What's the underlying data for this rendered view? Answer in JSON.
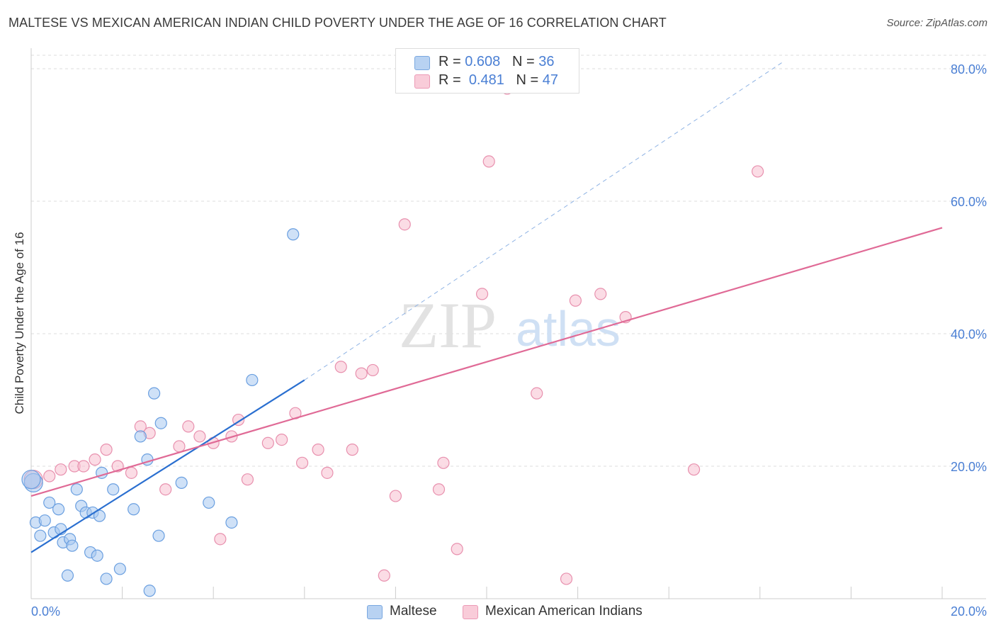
{
  "header": {
    "title": "MALTESE VS MEXICAN AMERICAN INDIAN CHILD POVERTY UNDER THE AGE OF 16 CORRELATION CHART",
    "source": "Source: ZipAtlas.com"
  },
  "legend": {
    "rows": [
      {
        "r_label": "R = ",
        "r_value": "0.608",
        "n_label": "N = ",
        "n_value": "36"
      },
      {
        "r_label": "R = ",
        "r_value": "0.481",
        "n_label": "N = ",
        "n_value": "47"
      }
    ]
  },
  "bottom_legend": [
    "Maltese",
    "Mexican American Indians"
  ],
  "watermark": {
    "zip": "ZIP",
    "atlas": "atlas"
  },
  "colors": {
    "maltese_fill": "#a8c8f0",
    "maltese_stroke": "#6a9fe0",
    "maltese_line": "#2a6fd0",
    "mexican_fill": "#f7bfd0",
    "mexican_stroke": "#e890ae",
    "mexican_line": "#e06a96",
    "tick_text": "#4a7fd4",
    "grid": "#dddddd"
  },
  "chart_data": {
    "type": "scatter",
    "title": "MALTESE VS MEXICAN AMERICAN INDIAN CHILD POVERTY UNDER THE AGE OF 16 CORRELATION CHART",
    "xlabel": "",
    "ylabel": "Child Poverty Under the Age of 16",
    "xlim": [
      0,
      20
    ],
    "ylim": [
      0,
      80
    ],
    "x_ticks": [
      {
        "value": 0,
        "label": "0.0%"
      },
      {
        "value": 20,
        "label": "20.0%"
      }
    ],
    "y_ticks": [
      {
        "value": 20,
        "label": "20.0%"
      },
      {
        "value": 40,
        "label": "40.0%"
      },
      {
        "value": 60,
        "label": "60.0%"
      },
      {
        "value": 80,
        "label": "80.0%"
      }
    ],
    "grid": true,
    "legend_position": "top-center",
    "series": [
      {
        "name": "Maltese",
        "points": [
          [
            0.05,
            17.5
          ],
          [
            0.1,
            11.5
          ],
          [
            0.2,
            9.5
          ],
          [
            0.3,
            11.8
          ],
          [
            0.4,
            14.5
          ],
          [
            0.5,
            10
          ],
          [
            0.6,
            13.5
          ],
          [
            0.65,
            10.5
          ],
          [
            0.7,
            8.5
          ],
          [
            0.8,
            3.5
          ],
          [
            0.85,
            9
          ],
          [
            0.9,
            8
          ],
          [
            1.0,
            16.5
          ],
          [
            1.1,
            14
          ],
          [
            1.2,
            13
          ],
          [
            1.3,
            7
          ],
          [
            1.35,
            13
          ],
          [
            1.45,
            6.5
          ],
          [
            1.5,
            12.5
          ],
          [
            1.55,
            19
          ],
          [
            1.65,
            3
          ],
          [
            1.8,
            16.5
          ],
          [
            1.95,
            4.5
          ],
          [
            2.25,
            13.5
          ],
          [
            2.4,
            24.5
          ],
          [
            2.55,
            21
          ],
          [
            2.6,
            1.2
          ],
          [
            2.7,
            31
          ],
          [
            2.8,
            9.5
          ],
          [
            2.85,
            26.5
          ],
          [
            3.3,
            17.5
          ],
          [
            3.9,
            14.5
          ],
          [
            4.4,
            11.5
          ],
          [
            4.85,
            33
          ],
          [
            5.75,
            55
          ],
          [
            0.0,
            18.0
          ]
        ],
        "trend": {
          "x": [
            0,
            6
          ],
          "y": [
            7,
            33
          ],
          "extends_dashed_to": [
            16.5,
            81
          ]
        }
      },
      {
        "name": "Mexican American Indians",
        "points": [
          [
            0.05,
            18
          ],
          [
            0.4,
            18.5
          ],
          [
            0.65,
            19.5
          ],
          [
            0.95,
            20
          ],
          [
            1.15,
            20
          ],
          [
            1.4,
            21
          ],
          [
            1.65,
            22.5
          ],
          [
            1.9,
            20
          ],
          [
            2.2,
            19
          ],
          [
            2.4,
            26
          ],
          [
            2.6,
            25
          ],
          [
            2.95,
            16.5
          ],
          [
            3.25,
            23
          ],
          [
            3.45,
            26
          ],
          [
            3.7,
            24.5
          ],
          [
            4.0,
            23.5
          ],
          [
            4.15,
            9
          ],
          [
            4.4,
            24.5
          ],
          [
            4.55,
            27
          ],
          [
            4.75,
            18
          ],
          [
            5.2,
            23.5
          ],
          [
            5.5,
            24
          ],
          [
            5.8,
            28
          ],
          [
            5.95,
            20.5
          ],
          [
            6.3,
            22.5
          ],
          [
            6.5,
            19
          ],
          [
            6.8,
            35
          ],
          [
            7.05,
            22.5
          ],
          [
            7.25,
            34
          ],
          [
            7.5,
            34.5
          ],
          [
            7.75,
            3.5
          ],
          [
            8.0,
            15.5
          ],
          [
            8.2,
            56.5
          ],
          [
            8.95,
            16.5
          ],
          [
            9.05,
            20.5
          ],
          [
            9.35,
            7.5
          ],
          [
            9.9,
            46
          ],
          [
            10.05,
            66
          ],
          [
            10.45,
            77
          ],
          [
            11.1,
            31
          ],
          [
            11.75,
            3
          ],
          [
            11.95,
            45
          ],
          [
            12.5,
            46
          ],
          [
            13.05,
            42.5
          ],
          [
            14.55,
            19.5
          ],
          [
            15.95,
            64.5
          ],
          [
            10.2,
            78
          ]
        ],
        "trend": {
          "x": [
            0,
            20
          ],
          "y": [
            15.5,
            56
          ]
        }
      }
    ]
  }
}
